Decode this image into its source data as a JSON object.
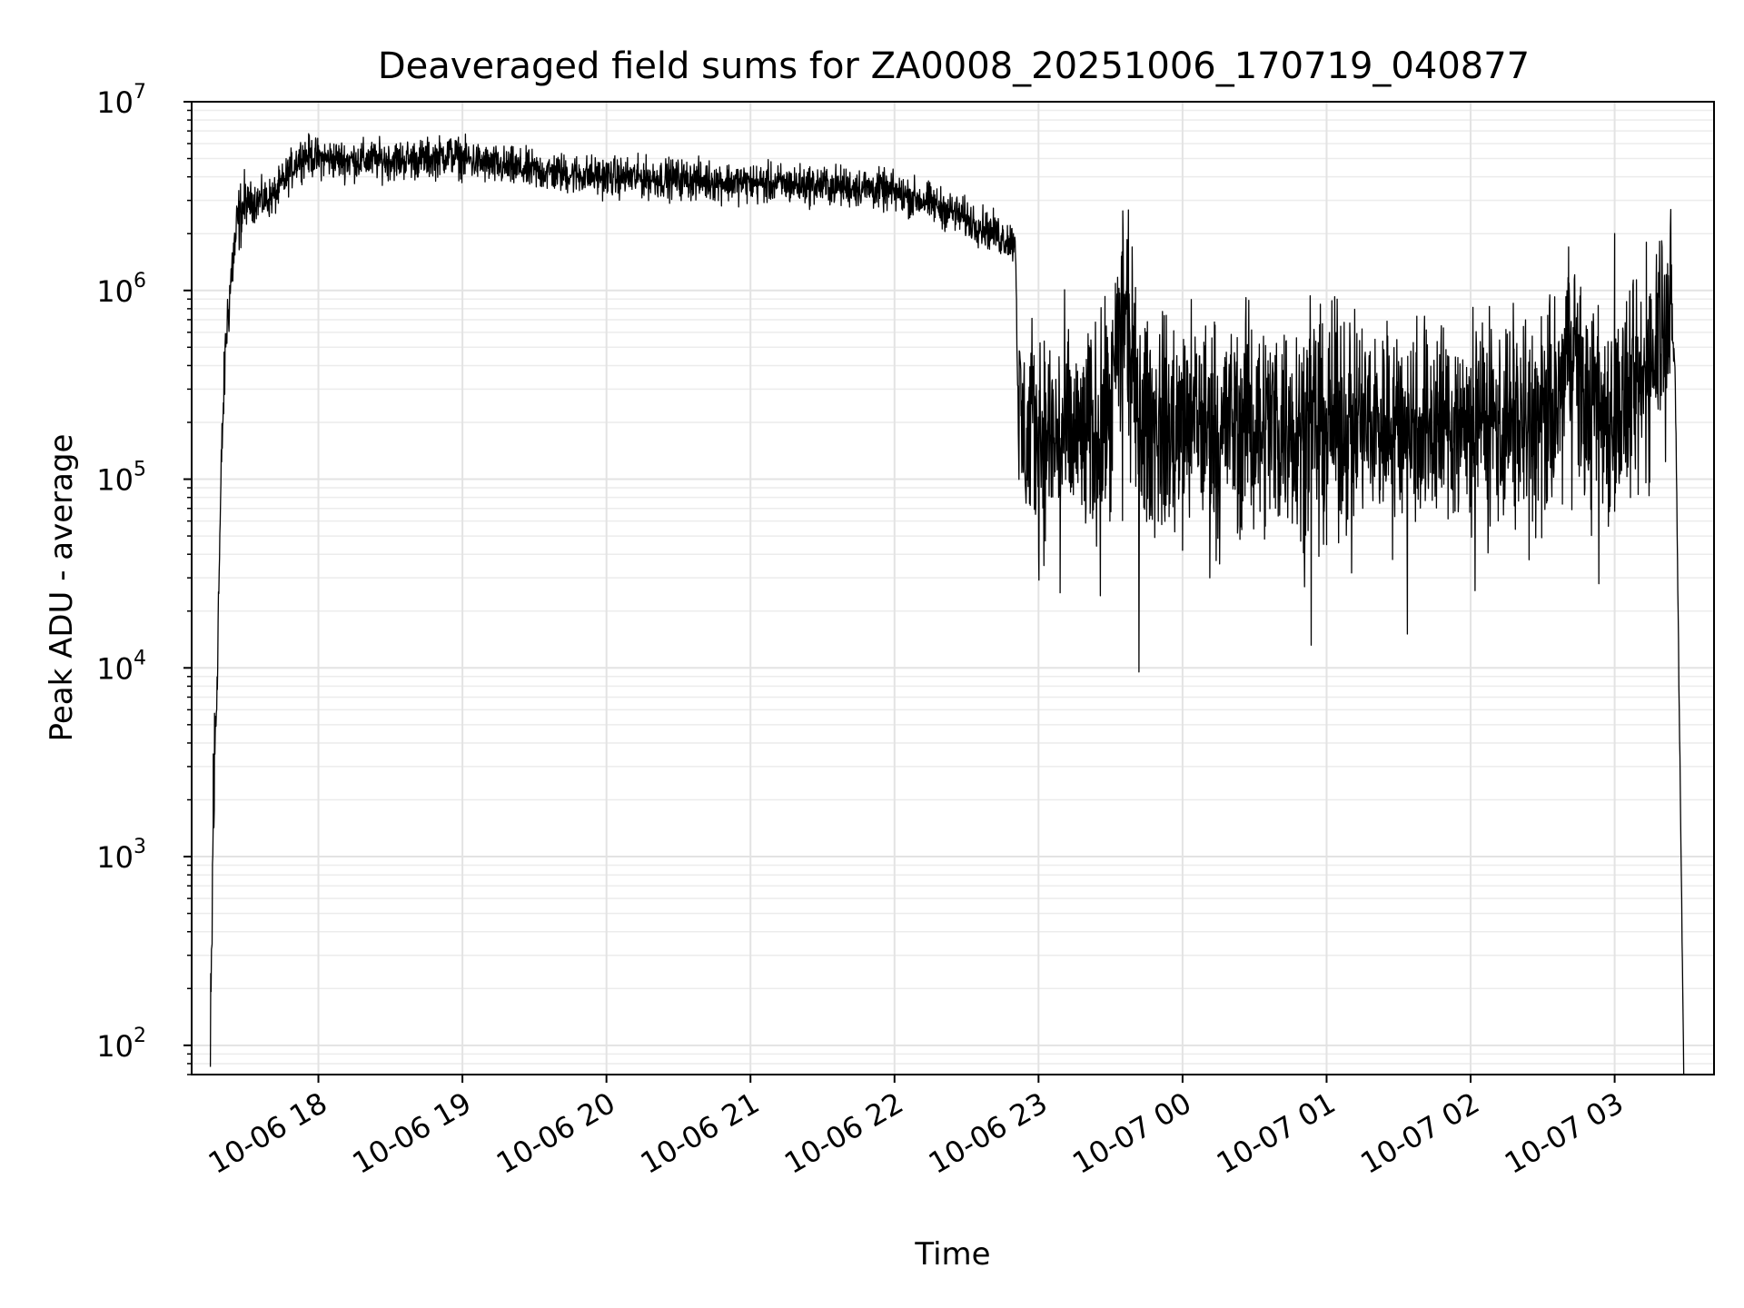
{
  "chart_data": {
    "type": "line",
    "title": "Deaveraged field sums for ZA0008_20251006_170719_040877",
    "xlabel": "Time",
    "ylabel": "Peak ADU - average",
    "yscale": "log",
    "ylim": [
      70,
      10000000
    ],
    "xlim_hours": [
      17.12,
      27.69
    ],
    "grid": "on",
    "x_ticks": [
      {
        "label": "10-06 18",
        "hour": 18
      },
      {
        "label": "10-06 19",
        "hour": 19
      },
      {
        "label": "10-06 20",
        "hour": 20
      },
      {
        "label": "10-06 21",
        "hour": 21
      },
      {
        "label": "10-06 22",
        "hour": 22
      },
      {
        "label": "10-06 23",
        "hour": 23
      },
      {
        "label": "10-07 00",
        "hour": 24
      },
      {
        "label": "10-07 01",
        "hour": 25
      },
      {
        "label": "10-07 02",
        "hour": 26
      },
      {
        "label": "10-07 03",
        "hour": 27
      }
    ],
    "y_ticks": [
      {
        "base": "10",
        "exp": "2",
        "value": 100
      },
      {
        "base": "10",
        "exp": "3",
        "value": 1000
      },
      {
        "base": "10",
        "exp": "4",
        "value": 10000
      },
      {
        "base": "10",
        "exp": "5",
        "value": 100000
      },
      {
        "base": "10",
        "exp": "6",
        "value": 1000000
      },
      {
        "base": "10",
        "exp": "7",
        "value": 10000000
      }
    ],
    "series": [
      {
        "name": "Peak ADU - average",
        "color": "#000000",
        "hours": [
          17.25,
          17.27,
          17.29,
          17.31,
          17.33,
          17.36,
          17.4,
          17.44,
          17.48,
          17.55,
          17.62,
          17.7,
          17.78,
          17.86,
          17.92,
          18.0,
          18.2,
          18.5,
          18.8,
          18.9,
          19.0,
          19.2,
          19.5,
          20.0,
          20.5,
          21.0,
          21.5,
          21.8,
          22.0,
          22.2,
          22.4,
          22.6,
          22.75,
          22.84,
          22.86,
          22.88,
          23.0,
          23.3,
          23.5,
          23.58,
          23.62,
          23.68,
          23.75,
          24.0,
          24.5,
          25.0,
          25.5,
          26.0,
          26.5,
          26.6,
          26.7,
          26.8,
          27.0,
          27.1,
          27.2,
          27.3,
          27.35,
          27.38,
          27.42,
          27.45,
          27.48
        ],
        "values": [
          70,
          1500,
          6000,
          30000,
          150000,
          600000,
          1300000,
          2300000,
          2800000,
          3000000,
          3000000,
          3200000,
          4000000,
          5000000,
          5200000,
          5000000,
          4900000,
          4900000,
          5000000,
          5300000,
          5000000,
          4600000,
          4300000,
          4000000,
          3900000,
          3700000,
          3600000,
          3500000,
          3300000,
          3000000,
          2600000,
          2200000,
          1900000,
          1800000,
          200000,
          180000,
          170000,
          160000,
          200000,
          800000,
          600000,
          220000,
          190000,
          190000,
          200000,
          200000,
          200000,
          200000,
          200000,
          220000,
          550000,
          230000,
          220000,
          250000,
          300000,
          700000,
          900000,
          800000,
          400000,
          5000,
          70
        ],
        "noise_dex_band": [
          [
            17.12,
            17.3,
            0.3
          ],
          [
            17.3,
            17.5,
            0.12
          ],
          [
            17.5,
            22.86,
            0.07
          ],
          [
            22.86,
            27.4,
            0.38
          ]
        ],
        "spikes": [
          {
            "hour": 17.27,
            "value": 3500
          },
          {
            "hour": 23.58,
            "value": 1600000
          },
          {
            "hour": 23.65,
            "value": 1700000
          },
          {
            "hour": 26.68,
            "value": 1700000
          },
          {
            "hour": 27.0,
            "value": 2000000
          },
          {
            "hour": 27.22,
            "value": 1800000
          },
          {
            "hour": 23.15,
            "value": 25000
          },
          {
            "hour": 24.0,
            "value": 42000
          },
          {
            "hour": 25.0,
            "value": 45000
          }
        ]
      }
    ]
  }
}
